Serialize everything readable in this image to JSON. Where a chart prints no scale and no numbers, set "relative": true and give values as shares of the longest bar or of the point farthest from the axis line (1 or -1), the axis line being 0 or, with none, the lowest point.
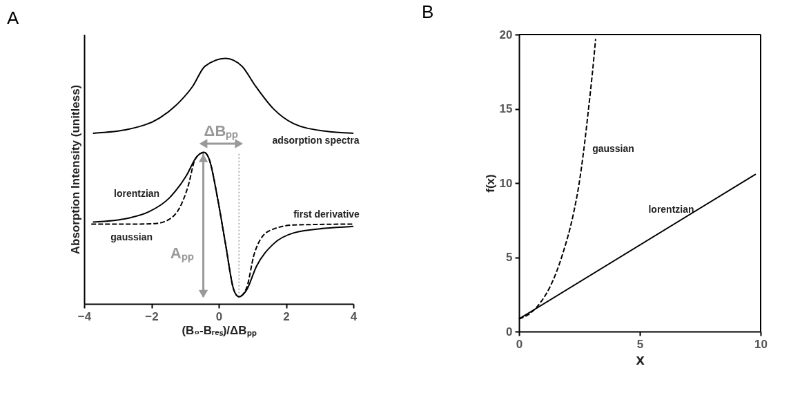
{
  "chart_data": [
    {
      "type": "line",
      "title": "A",
      "xlabel": "(B₀-Bᵣₑₛ)/ΔBₚₚ",
      "ylabel": "Absorption Intensity (unitless)",
      "relative": true,
      "xlim": [
        -4,
        4
      ],
      "xticks": [
        -4,
        -2,
        0,
        2,
        4
      ],
      "tick_labels": "x",
      "series": [
        {
          "color": "#000000",
          "line_style": "solid",
          "x": [
            -3.74,
            -2.68,
            -1.76,
            -1.15,
            -0.78,
            -0.41,
            0.2,
            0.69,
            1.06,
            1.62,
            2.23,
            3.15,
            4.0
          ],
          "values": [
            0.686,
            0.703,
            0.75,
            0.82,
            0.882,
            0.967,
            1,
            0.967,
            0.89,
            0.789,
            0.726,
            0.695,
            0.686
          ]
        },
        {
          "color": "#000000",
          "line_style": "solid",
          "x": [
            -3.74,
            -2.68,
            -2.07,
            -1.46,
            -0.96,
            -0.66,
            -0.44,
            -0.29,
            -0.04,
            0.2,
            0.45,
            0.6,
            0.82,
            1.12,
            1.62,
            2.23,
            3.15,
            4.0
          ],
          "values": [
            0.313,
            0.33,
            0.357,
            0.416,
            0.509,
            0.587,
            0.606,
            0.579,
            0.416,
            0.221,
            0.027,
            0,
            0.027,
            0.128,
            0.221,
            0.268,
            0.287,
            0.295
          ]
        },
        {
          "color": "#000000",
          "line_style": "dashed",
          "x": [
            -3.79,
            -2.38,
            -1.89,
            -1.46,
            -1.15,
            -0.9,
            -0.72,
            -0.53,
            -0.44,
            -0.29,
            -0.04,
            0.2,
            0.45,
            0.6,
            0.82,
            1.06,
            1.49,
            2.23,
            4.0
          ],
          "values": [
            0.305,
            0.305,
            0.307,
            0.326,
            0.377,
            0.47,
            0.571,
            0.602,
            0.606,
            0.579,
            0.416,
            0.221,
            0.027,
            0,
            0.035,
            0.183,
            0.276,
            0.301,
            0.305
          ]
        }
      ],
      "ref_lines": [
        {
          "axis": "x",
          "value": -0.46,
          "label": "Aₚₚ",
          "color": "#999999",
          "line_style": "solid"
        },
        {
          "axis": "x",
          "value": 0.6,
          "label": "ΔBₚₚ",
          "color": "#999999",
          "line_style": "dotted"
        }
      ],
      "annotations": [
        "lorentzian",
        "gaussian",
        "adsorption spectra",
        "first derivative"
      ]
    },
    {
      "type": "line",
      "title": "B",
      "xlabel": "x",
      "ylabel": "f(x)",
      "xlim": [
        0,
        10
      ],
      "xticks": [
        0,
        5,
        10
      ],
      "ylim": [
        0,
        20
      ],
      "yticks": [
        0,
        5,
        10,
        15,
        20
      ],
      "series": [
        {
          "color": "#000000",
          "line_style": "solid",
          "x": [
            0,
            9.8
          ],
          "values": [
            0.85,
            10.6
          ]
        },
        {
          "color": "#000000",
          "line_style": "dashed",
          "x": [
            0,
            0.48,
            0.93,
            1.28,
            1.81,
            2.26,
            2.48,
            2.7,
            2.88,
            3.06,
            3.17
          ],
          "values": [
            0.85,
            1.25,
            2.05,
            3.0,
            5.25,
            8.0,
            9.9,
            12.5,
            15.05,
            17.8,
            19.7
          ]
        }
      ],
      "annotations": [
        "gaussian",
        "lorentzian"
      ]
    }
  ]
}
